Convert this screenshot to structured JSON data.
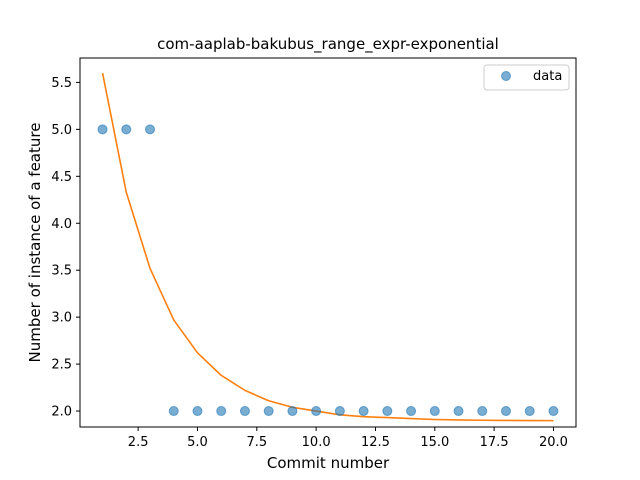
{
  "chart_data": {
    "type": "scatter",
    "title": "com-aaplab-bakubus_range_expr-exponential",
    "xlabel": "Commit number",
    "ylabel": "Number of instance of a feature",
    "xlim": [
      0.05,
      20.95
    ],
    "ylim": [
      1.83,
      5.76
    ],
    "x_ticks": [
      2.5,
      5.0,
      7.5,
      10.0,
      12.5,
      15.0,
      17.5,
      20.0
    ],
    "x_tick_labels": [
      "2.5",
      "5.0",
      "7.5",
      "10.0",
      "12.5",
      "15.0",
      "17.5",
      "20.0"
    ],
    "y_ticks": [
      2.0,
      2.5,
      3.0,
      3.5,
      4.0,
      4.5,
      5.0,
      5.5
    ],
    "y_tick_labels": [
      "2.0",
      "2.5",
      "3.0",
      "3.5",
      "4.0",
      "4.5",
      "5.0",
      "5.5"
    ],
    "legend": {
      "position": "top-right",
      "entries": [
        "data"
      ]
    },
    "grid": false,
    "series": [
      {
        "name": "data",
        "kind": "scatter",
        "color": "#1f77b4",
        "x": [
          1,
          2,
          3,
          4,
          5,
          6,
          7,
          8,
          9,
          10,
          11,
          12,
          13,
          14,
          15,
          16,
          17,
          18,
          19,
          20
        ],
        "y": [
          5,
          5,
          5,
          2,
          2,
          2,
          2,
          2,
          2,
          2,
          2,
          2,
          2,
          2,
          2,
          2,
          2,
          2,
          2,
          2
        ]
      },
      {
        "kind": "line",
        "color": "#ff7f0e",
        "x": [
          1,
          2,
          3,
          4,
          5,
          6,
          7,
          8,
          9,
          10,
          11,
          12,
          13,
          14,
          15,
          16,
          17,
          18,
          19,
          20
        ],
        "y": [
          5.6,
          4.33,
          3.52,
          2.97,
          2.62,
          2.38,
          2.22,
          2.11,
          2.04,
          2.0,
          1.96,
          1.94,
          1.93,
          1.92,
          1.91,
          1.905,
          1.902,
          1.9,
          1.899,
          1.898
        ]
      }
    ]
  }
}
